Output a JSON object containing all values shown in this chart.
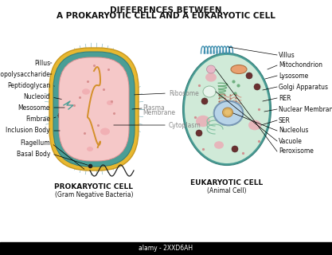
{
  "title_line1": "DIFFERENCES BETWEEN",
  "title_line2": "A PROKARYOTIC CELL AND A EUKARYOTIC CELL",
  "prokaryotic_label": "PROKARYOTIC CELL",
  "prokaryotic_sublabel": "(Gram Negative Bacteria)",
  "eukaryotic_label": "EUKARYOTIC CELL",
  "eukaryotic_sublabel": "(Animal Cell)",
  "watermark": "alamy - 2XXD6AH",
  "bg_color": "#ffffff",
  "cell1_fill": "#f5c8c8",
  "cell1_wall_yellow": "#e8b830",
  "cell1_wall_teal": "#4a9e96",
  "cell1_dna_color": "#d4902a",
  "cell2_fill": "#d0ead8",
  "cell2_wall": "#4a9e96",
  "label_color": "#111111",
  "gray_label_color": "#888888"
}
